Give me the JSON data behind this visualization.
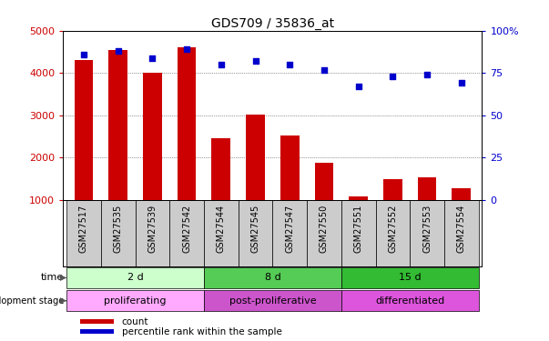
{
  "title": "GDS709 / 35836_at",
  "samples": [
    "GSM27517",
    "GSM27535",
    "GSM27539",
    "GSM27542",
    "GSM27544",
    "GSM27545",
    "GSM27547",
    "GSM27550",
    "GSM27551",
    "GSM27552",
    "GSM27553",
    "GSM27554"
  ],
  "counts": [
    4300,
    4550,
    4000,
    4600,
    2450,
    3020,
    2520,
    1870,
    1080,
    1480,
    1530,
    1270
  ],
  "percentiles": [
    86,
    88,
    84,
    89,
    80,
    82,
    80,
    77,
    67,
    73,
    74,
    69
  ],
  "ylim_left": [
    1000,
    5000
  ],
  "ylim_right": [
    0,
    100
  ],
  "yticks_left": [
    1000,
    2000,
    3000,
    4000,
    5000
  ],
  "yticks_right": [
    0,
    25,
    50,
    75,
    100
  ],
  "ytick_labels_right": [
    "0",
    "25",
    "50",
    "75",
    "100%"
  ],
  "bar_color": "#cc0000",
  "scatter_color": "#0000cc",
  "time_groups": [
    {
      "label": "2 d",
      "start": 0,
      "end": 4,
      "color": "#ccffcc"
    },
    {
      "label": "8 d",
      "start": 4,
      "end": 8,
      "color": "#55cc55"
    },
    {
      "label": "15 d",
      "start": 8,
      "end": 12,
      "color": "#33bb33"
    }
  ],
  "stage_groups": [
    {
      "label": "proliferating",
      "start": 0,
      "end": 4,
      "color": "#ffaaff"
    },
    {
      "label": "post-proliferative",
      "start": 4,
      "end": 8,
      "color": "#cc55cc"
    },
    {
      "label": "differentiated",
      "start": 8,
      "end": 12,
      "color": "#dd55dd"
    }
  ],
  "tick_color": "#cc0000",
  "right_tick_color": "#0000cc",
  "grid_linestyle": "dotted",
  "background_color": "#ffffff",
  "xticklabel_bg": "#cccccc"
}
